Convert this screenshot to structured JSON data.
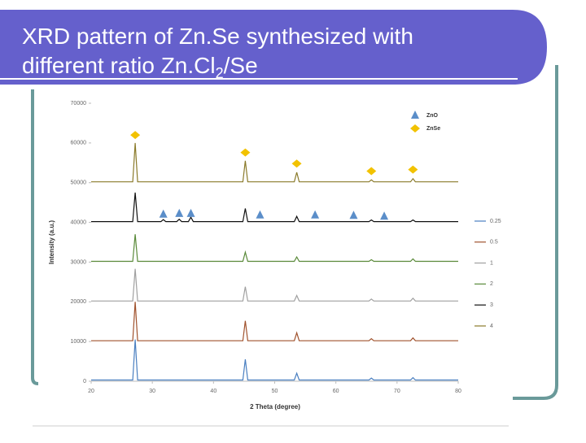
{
  "chart_data": {
    "type": "line",
    "title": {
      "line1": "XRD pattern of Zn.Se synthesized with",
      "line2": "different ratio Zn.Cl",
      "line2_sub": "2",
      "line2_end": "/Se"
    },
    "x_label": "2 Theta (degree)",
    "y_label": "Intensity (a.u.)",
    "xlim": [
      20,
      80
    ],
    "xticks": [
      20,
      30,
      40,
      50,
      60,
      70,
      80
    ],
    "ylim": [
      0,
      70000
    ],
    "yticks": [
      0,
      10000,
      20000,
      30000,
      40000,
      50000,
      60000,
      70000
    ],
    "grid": false,
    "legend": "right",
    "x": [
      20,
      26.8,
      27.2,
      27.6,
      31.4,
      31.8,
      32.2,
      34,
      34.4,
      34.8,
      35.9,
      36.3,
      36.7,
      44.8,
      45.2,
      45.6,
      53.2,
      53.6,
      54,
      65.4,
      65.8,
      66.2,
      72.2,
      72.6,
      73,
      80
    ],
    "series": [
      {
        "name": "0.25",
        "color": "#4a7fc0",
        "values": [
          300,
          300,
          10500,
          300,
          300,
          300,
          300,
          300,
          300,
          300,
          300,
          300,
          300,
          300,
          5500,
          300,
          300,
          2000,
          300,
          300,
          800,
          300,
          300,
          900,
          300,
          300
        ]
      },
      {
        "name": "0.5",
        "color": "#a0522d",
        "values": [
          10200,
          10200,
          20000,
          10200,
          10200,
          10200,
          10200,
          10200,
          10200,
          10200,
          10200,
          10200,
          10200,
          10200,
          15200,
          10200,
          10200,
          12200,
          10200,
          10200,
          10700,
          10200,
          10200,
          10900,
          10200,
          10200
        ]
      },
      {
        "name": "1",
        "color": "#a0a0a0",
        "values": [
          20200,
          20200,
          28300,
          20200,
          20200,
          20200,
          20200,
          20200,
          20200,
          20200,
          20200,
          20200,
          20200,
          20200,
          23800,
          20200,
          20200,
          21600,
          20200,
          20200,
          20700,
          20200,
          20200,
          20900,
          20200,
          20200
        ]
      },
      {
        "name": "2",
        "color": "#5a8a3a",
        "values": [
          30200,
          30200,
          37000,
          30200,
          30200,
          30200,
          30200,
          30200,
          30200,
          30200,
          30200,
          30200,
          30200,
          30200,
          32500,
          30200,
          30200,
          31300,
          30200,
          30200,
          30600,
          30200,
          30200,
          30800,
          30200,
          30200
        ]
      },
      {
        "name": "3",
        "color": "#111111",
        "values": [
          40200,
          40200,
          47500,
          40200,
          40200,
          40700,
          40200,
          40200,
          40800,
          40200,
          40200,
          41300,
          40200,
          40200,
          43500,
          40200,
          40200,
          41500,
          40200,
          40200,
          40600,
          40200,
          40200,
          40600,
          40200,
          40200
        ]
      },
      {
        "name": "4",
        "color": "#8a7a2a",
        "values": [
          50200,
          50200,
          60000,
          50200,
          50200,
          50200,
          50200,
          50200,
          50200,
          50200,
          50200,
          50200,
          50200,
          50200,
          55500,
          50200,
          50200,
          52600,
          50200,
          50200,
          50700,
          50200,
          50200,
          51000,
          50200,
          50200
        ]
      }
    ],
    "annotations": [
      {
        "label": "ZnO",
        "marker": "triangle",
        "color": "#5b8ec9",
        "points": [
          {
            "x": 31.8,
            "y": 42000
          },
          {
            "x": 34.4,
            "y": 42200
          },
          {
            "x": 36.3,
            "y": 42200
          },
          {
            "x": 47.6,
            "y": 41800
          },
          {
            "x": 56.6,
            "y": 41800
          },
          {
            "x": 62.9,
            "y": 41700
          },
          {
            "x": 67.9,
            "y": 41500
          }
        ]
      },
      {
        "label": "ZnSe",
        "marker": "diamond",
        "color": "#f2c200",
        "points": [
          {
            "x": 27.2,
            "y": 62000
          },
          {
            "x": 45.2,
            "y": 57600
          },
          {
            "x": 53.6,
            "y": 54800
          },
          {
            "x": 65.8,
            "y": 52900
          },
          {
            "x": 72.6,
            "y": 53300
          }
        ]
      }
    ]
  }
}
